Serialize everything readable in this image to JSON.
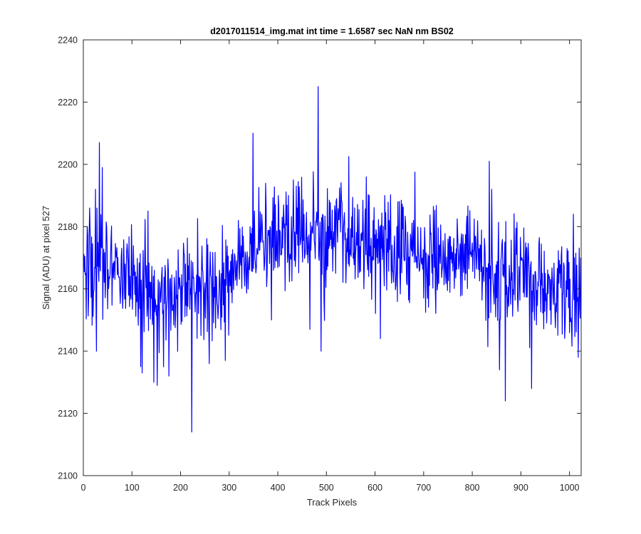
{
  "chart_data": {
    "type": "line",
    "title": "d2017011514_img.mat int time = 1.6587 sec  NaN nm BS02",
    "xlabel": "Track Pixels",
    "ylabel": "Signal (ADU) at pixel 527",
    "xlim": [
      0,
      1024
    ],
    "ylim": [
      2100,
      2240
    ],
    "xticks": [
      0,
      100,
      200,
      300,
      400,
      500,
      600,
      700,
      800,
      900,
      1000
    ],
    "yticks": [
      2100,
      2120,
      2140,
      2160,
      2180,
      2200,
      2220,
      2240
    ],
    "grid": false,
    "legend": "none",
    "series_color": "#0000ff",
    "anchors": [
      [
        0,
        2166
      ],
      [
        20,
        2166
      ],
      [
        50,
        2164
      ],
      [
        80,
        2166
      ],
      [
        100,
        2162
      ],
      [
        130,
        2160
      ],
      [
        160,
        2157
      ],
      [
        200,
        2159
      ],
      [
        240,
        2161
      ],
      [
        270,
        2160
      ],
      [
        300,
        2165
      ],
      [
        330,
        2171
      ],
      [
        360,
        2174
      ],
      [
        400,
        2176
      ],
      [
        450,
        2178
      ],
      [
        500,
        2177
      ],
      [
        550,
        2176
      ],
      [
        600,
        2175
      ],
      [
        650,
        2173
      ],
      [
        700,
        2171
      ],
      [
        750,
        2170
      ],
      [
        800,
        2169
      ],
      [
        850,
        2166
      ],
      [
        900,
        2163
      ],
      [
        950,
        2161
      ],
      [
        1000,
        2158
      ],
      [
        1024,
        2158
      ]
    ],
    "noise_amplitude": 8,
    "spikes": [
      [
        33,
        2207
      ],
      [
        39,
        2199
      ],
      [
        25,
        2192
      ],
      [
        13,
        2186
      ],
      [
        27,
        2140
      ],
      [
        118,
        2135
      ],
      [
        121,
        2133
      ],
      [
        133,
        2185
      ],
      [
        145,
        2130
      ],
      [
        152,
        2129
      ],
      [
        176,
        2132
      ],
      [
        223,
        2114
      ],
      [
        259,
        2136
      ],
      [
        292,
        2137
      ],
      [
        319,
        2182
      ],
      [
        349,
        2210
      ],
      [
        352,
        2185
      ],
      [
        387,
        2150
      ],
      [
        432,
        2195
      ],
      [
        440,
        2186
      ],
      [
        466,
        2147
      ],
      [
        483,
        2225
      ],
      [
        489,
        2140
      ],
      [
        582,
        2196
      ],
      [
        588,
        2190
      ],
      [
        611,
        2144
      ],
      [
        620,
        2190
      ],
      [
        835,
        2201
      ],
      [
        840,
        2192
      ],
      [
        856,
        2134
      ],
      [
        868,
        2124
      ],
      [
        922,
        2128
      ],
      [
        1008,
        2184
      ],
      [
        1018,
        2138
      ]
    ],
    "points": 1024
  }
}
